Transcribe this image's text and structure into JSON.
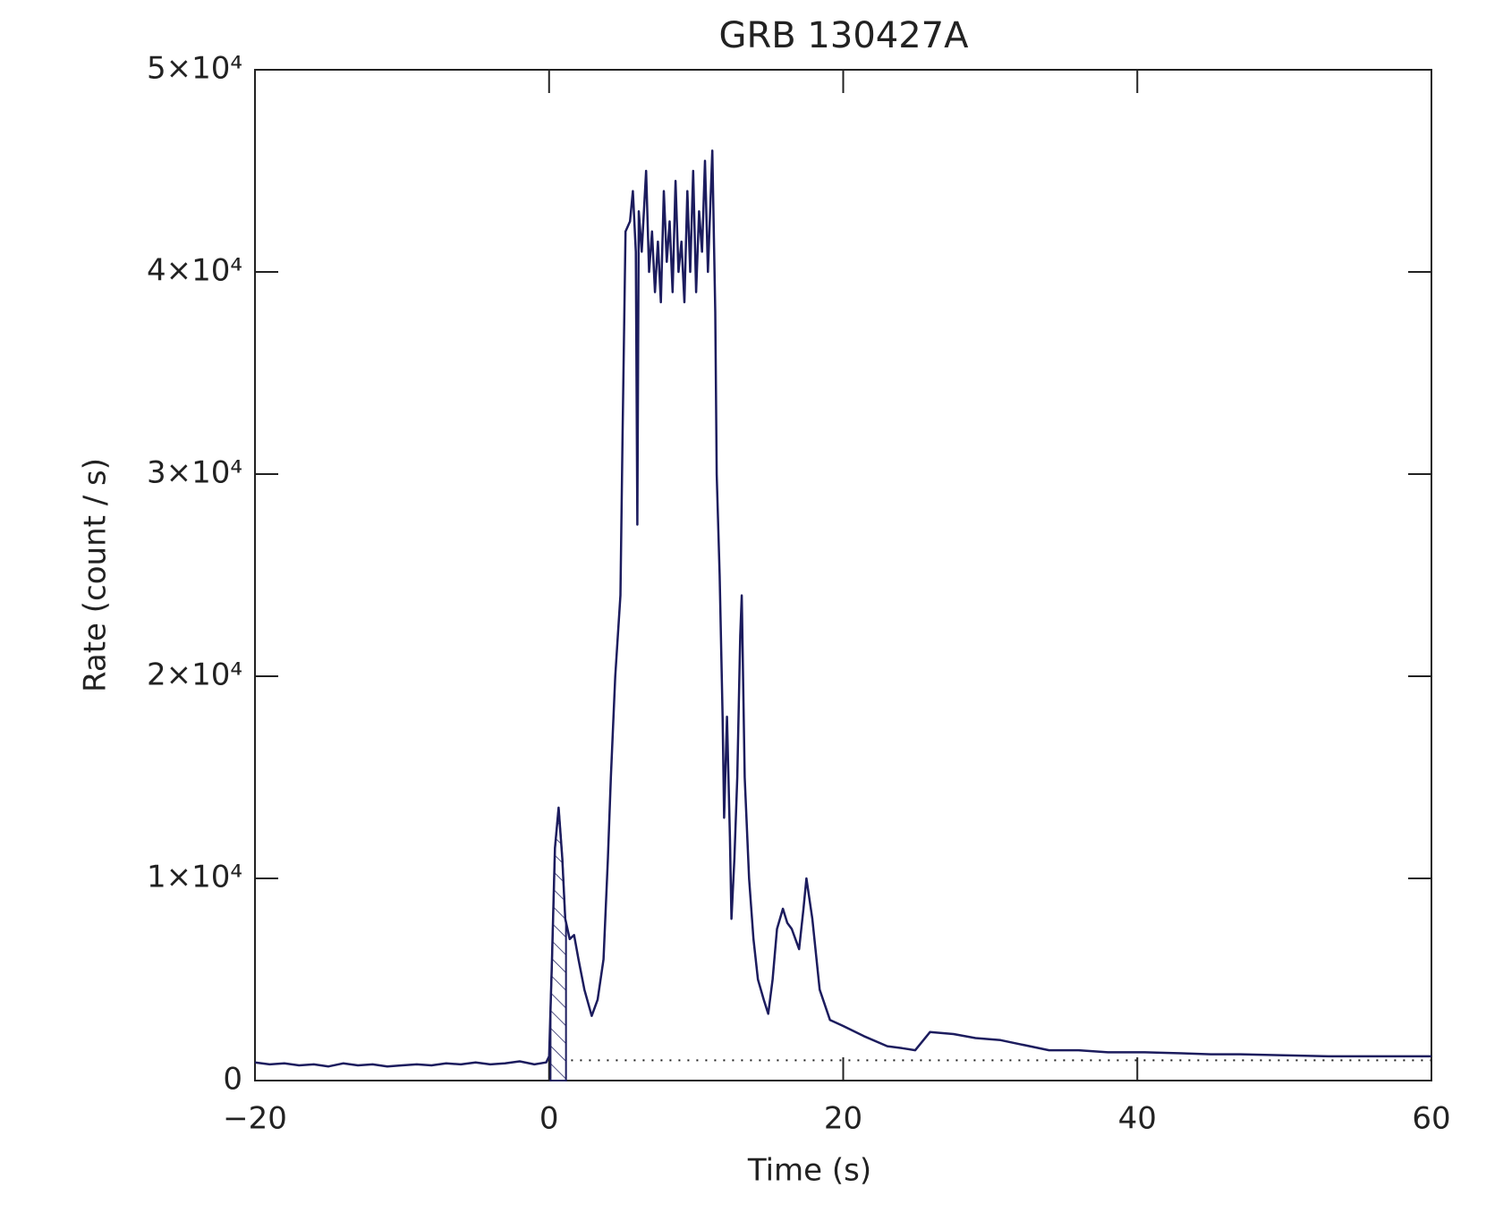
{
  "chart_data": {
    "type": "line",
    "title": "GRB 130427A",
    "x_label": "Time (s)",
    "y_label": "Rate (count / s)",
    "color": "#1c1c5e",
    "x": [
      -20,
      -19,
      -18,
      -17,
      -16,
      -15,
      -14,
      -13,
      -12,
      -11,
      -10,
      -9,
      -8,
      -7,
      -6,
      -5,
      -4,
      -3,
      -2,
      -1,
      -0.2,
      0,
      0.2,
      0.4,
      0.65,
      0.9,
      1.1,
      1.4,
      1.7,
      2.0,
      2.4,
      2.9,
      3.3,
      3.7,
      4.0,
      4.2,
      4.5,
      4.85,
      5.0,
      5.2,
      5.5,
      5.7,
      5.9,
      6.0,
      6.1,
      6.3,
      6.6,
      6.8,
      7.0,
      7.2,
      7.4,
      7.6,
      7.8,
      8.0,
      8.2,
      8.4,
      8.6,
      8.8,
      9.0,
      9.2,
      9.4,
      9.6,
      9.8,
      10.0,
      10.2,
      10.4,
      10.6,
      10.8,
      11.1,
      11.3,
      11.4,
      11.6,
      11.8,
      11.9,
      12.1,
      12.3,
      12.4,
      12.6,
      12.8,
      13.0,
      13.1,
      13.3,
      13.6,
      13.9,
      14.2,
      14.6,
      14.9,
      15.2,
      15.5,
      15.9,
      16.2,
      16.5,
      17.0,
      17.3,
      17.5,
      17.9,
      18.4,
      19.1,
      20,
      21.4,
      23,
      24,
      24.9,
      25.9,
      27.5,
      29,
      30.7,
      32,
      34,
      36,
      38,
      40.5,
      43,
      45,
      47,
      50,
      53,
      56,
      60
    ],
    "values": [
      900,
      800,
      850,
      750,
      800,
      700,
      850,
      750,
      800,
      700,
      750,
      800,
      750,
      850,
      800,
      900,
      800,
      850,
      950,
      800,
      900,
      1200,
      6000,
      11500,
      13500,
      11000,
      8000,
      7000,
      7200,
      6000,
      4500,
      3200,
      4000,
      6000,
      11000,
      15000,
      20000,
      24000,
      32000,
      42000,
      42500,
      44000,
      41000,
      27500,
      43000,
      41000,
      45000,
      40000,
      42000,
      39000,
      41500,
      38500,
      44000,
      40500,
      42500,
      39000,
      44500,
      40000,
      41500,
      38500,
      44000,
      40000,
      45000,
      39000,
      43000,
      41000,
      45500,
      40000,
      46000,
      38000,
      30000,
      25000,
      18000,
      13000,
      18000,
      12000,
      8000,
      11000,
      15000,
      22000,
      24000,
      15000,
      10000,
      7000,
      5000,
      4000,
      3300,
      5000,
      7500,
      8500,
      7800,
      7500,
      6500,
      8500,
      10000,
      8000,
      4500,
      3000,
      2700,
      2200,
      1700,
      1600,
      1500,
      2400,
      2300,
      2100,
      2000,
      1800,
      1500,
      1500,
      1400,
      1400,
      1350,
      1300,
      1300,
      1250,
      1200,
      1200,
      1200
    ],
    "xlim": [
      -20,
      60
    ],
    "xticks": [
      {
        "value": -20,
        "label": "−20"
      },
      0,
      20,
      40,
      60
    ],
    "ylim": [
      0,
      50000
    ],
    "yticks": [
      0,
      {
        "value": 10000,
        "label": "1×10⁴"
      },
      {
        "value": 20000,
        "label": "2×10⁴"
      },
      {
        "value": 30000,
        "label": "3×10⁴"
      },
      {
        "value": 40000,
        "label": "4×10⁴"
      },
      {
        "value": 50000,
        "label": "5×10⁴"
      }
    ],
    "hatch_xrange": [
      0.1,
      1.15
    ],
    "background_level": 1000,
    "background_x": [
      1.5,
      60
    ]
  }
}
